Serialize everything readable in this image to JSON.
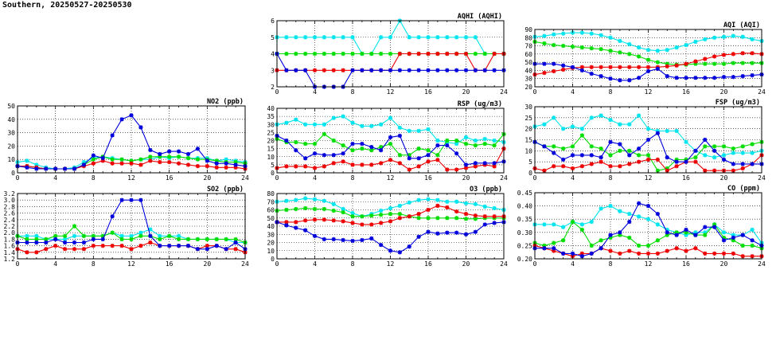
{
  "page": {
    "title": "Southern, 20250527-20250530"
  },
  "colors": {
    "cyan": "#00e5ee",
    "green": "#00dd00",
    "red": "#ee0000",
    "blue": "#0000dd",
    "grid": "#000000",
    "axis": "#000000"
  },
  "chart_data": [
    {
      "type": "line",
      "title": "AQHI (AQHI)",
      "xlim": [
        0,
        24
      ],
      "xticks": [
        "0",
        "4",
        "8",
        "12",
        "16",
        "20",
        "24"
      ],
      "ylim": [
        2,
        6
      ],
      "yticks": [
        "2",
        "3",
        "4",
        "5",
        "6"
      ],
      "grid": true,
      "series": [
        {
          "color": "cyan",
          "values": [
            5,
            5,
            5,
            5,
            5,
            5,
            5,
            5,
            5,
            4,
            4,
            5,
            5,
            6,
            5,
            5,
            5,
            5,
            5,
            5,
            5,
            5,
            4,
            4,
            4
          ]
        },
        {
          "color": "green",
          "values": [
            4,
            4,
            4,
            4,
            4,
            4,
            4,
            4,
            4,
            4,
            4,
            4,
            4,
            4,
            4,
            4,
            4,
            4,
            4,
            4,
            4,
            4,
            4,
            4,
            4
          ]
        },
        {
          "color": "red",
          "values": [
            3,
            3,
            3,
            3,
            3,
            3,
            3,
            3,
            3,
            3,
            3,
            3,
            3,
            4,
            4,
            4,
            4,
            4,
            4,
            4,
            4,
            3,
            3,
            4,
            4
          ]
        },
        {
          "color": "blue",
          "values": [
            4,
            3,
            3,
            3,
            2,
            2,
            2,
            2,
            3,
            3,
            3,
            3,
            3,
            3,
            3,
            3,
            3,
            3,
            3,
            3,
            3,
            3,
            3,
            3,
            3
          ]
        }
      ]
    },
    {
      "type": "line",
      "title": "AQI (AQI)",
      "xlim": [
        0,
        24
      ],
      "xticks": [
        "0",
        "4",
        "8",
        "12",
        "16",
        "20",
        "24"
      ],
      "ylim": [
        20,
        90
      ],
      "yticks": [
        "20",
        "30",
        "40",
        "50",
        "60",
        "70",
        "80",
        "90"
      ],
      "grid": true,
      "series": [
        {
          "color": "cyan",
          "values": [
            81,
            82,
            84,
            85,
            86,
            86,
            85,
            83,
            80,
            76,
            72,
            68,
            65,
            64,
            65,
            68,
            71,
            75,
            78,
            80,
            81,
            82,
            81,
            78,
            76
          ]
        },
        {
          "color": "green",
          "values": [
            75,
            73,
            71,
            70,
            69,
            68,
            67,
            66,
            64,
            62,
            60,
            57,
            53,
            50,
            48,
            47,
            47,
            48,
            48,
            48,
            48,
            49,
            49,
            49,
            49
          ]
        },
        {
          "color": "red",
          "values": [
            35,
            37,
            39,
            41,
            43,
            44,
            44,
            44,
            44,
            44,
            44,
            44,
            44,
            44,
            45,
            46,
            48,
            51,
            54,
            57,
            59,
            60,
            61,
            61,
            60
          ]
        },
        {
          "color": "blue",
          "values": [
            48,
            48,
            48,
            46,
            44,
            40,
            36,
            33,
            30,
            28,
            28,
            31,
            39,
            42,
            33,
            31,
            31,
            31,
            31,
            31,
            32,
            32,
            33,
            34,
            35
          ]
        }
      ]
    },
    {
      "type": "line",
      "title": "NO2 (ppb)",
      "xlim": [
        0,
        24
      ],
      "xticks": [
        "0",
        "4",
        "8",
        "12",
        "16",
        "20",
        "24"
      ],
      "ylim": [
        0,
        50
      ],
      "yticks": [
        "0",
        "10",
        "20",
        "30",
        "40",
        "50"
      ],
      "grid": true,
      "series": [
        {
          "color": "cyan",
          "values": [
            8,
            9,
            6,
            4,
            3,
            3,
            4,
            8,
            11,
            12,
            11,
            10,
            9,
            10,
            10,
            12,
            11,
            12,
            11,
            11,
            11,
            9,
            10,
            9,
            8
          ]
        },
        {
          "color": "green",
          "values": [
            5,
            5,
            4,
            3,
            3,
            3,
            3,
            6,
            10,
            12,
            10,
            10,
            9,
            10,
            12,
            12,
            12,
            12,
            11,
            10,
            10,
            9,
            8,
            8,
            7
          ]
        },
        {
          "color": "red",
          "values": [
            5,
            5,
            4,
            3,
            3,
            3,
            3,
            5,
            7,
            9,
            7,
            7,
            7,
            6,
            9,
            8,
            8,
            7,
            6,
            5,
            5,
            4,
            4,
            4,
            3
          ]
        },
        {
          "color": "blue",
          "values": [
            5,
            4,
            3,
            3,
            3,
            3,
            3,
            6,
            13,
            11,
            28,
            40,
            43,
            34,
            17,
            14,
            16,
            16,
            14,
            18,
            9,
            7,
            7,
            6,
            5
          ]
        }
      ]
    },
    {
      "type": "line",
      "title": "RSP (ug/m3)",
      "xlim": [
        0,
        24
      ],
      "xticks": [
        "0",
        "4",
        "8",
        "12",
        "16",
        "20",
        "24"
      ],
      "ylim": [
        0,
        40
      ],
      "yticks": [
        "0",
        "5",
        "10",
        "15",
        "20",
        "25",
        "30",
        "35",
        "40"
      ],
      "grid": true,
      "series": [
        {
          "color": "cyan",
          "values": [
            30,
            31,
            33,
            30,
            30,
            30,
            34,
            35,
            31,
            29,
            29,
            30,
            34,
            28,
            26,
            26,
            27,
            20,
            19,
            18,
            22,
            20,
            21,
            20,
            19
          ]
        },
        {
          "color": "green",
          "values": [
            21,
            19,
            19,
            18,
            18,
            24,
            20,
            17,
            14,
            15,
            14,
            16,
            18,
            11,
            11,
            15,
            14,
            11,
            20,
            20,
            18,
            17,
            18,
            17,
            24
          ]
        },
        {
          "color": "red",
          "values": [
            3,
            4,
            4,
            4,
            3,
            4,
            6,
            7,
            5,
            5,
            5,
            6,
            8,
            6,
            2,
            4,
            7,
            8,
            2,
            2,
            3,
            4,
            5,
            4,
            15
          ]
        },
        {
          "color": "blue",
          "values": [
            23,
            20,
            14,
            9,
            12,
            11,
            11,
            12,
            18,
            18,
            16,
            14,
            22,
            23,
            9,
            9,
            11,
            17,
            17,
            12,
            5,
            6,
            6,
            6,
            7
          ]
        }
      ]
    },
    {
      "type": "line",
      "title": "FSP (ug/m3)",
      "xlim": [
        0,
        24
      ],
      "xticks": [
        "0",
        "4",
        "8",
        "12",
        "16",
        "20",
        "24"
      ],
      "ylim": [
        0,
        30
      ],
      "yticks": [
        "0",
        "5",
        "10",
        "15",
        "20",
        "25",
        "30"
      ],
      "grid": true,
      "series": [
        {
          "color": "cyan",
          "values": [
            21,
            22,
            25,
            20,
            21,
            20,
            25,
            26,
            24,
            22,
            22,
            26,
            20,
            19,
            19,
            19,
            14,
            10,
            8,
            7,
            8,
            9,
            9,
            9,
            10
          ]
        },
        {
          "color": "green",
          "values": [
            14,
            12,
            12,
            11,
            12,
            17,
            12,
            11,
            8,
            10,
            10,
            8,
            8,
            1,
            2,
            6,
            6,
            7,
            12,
            12,
            12,
            11,
            12,
            13,
            14
          ]
        },
        {
          "color": "red",
          "values": [
            2,
            1,
            3,
            3,
            2,
            3,
            4,
            5,
            3,
            3,
            4,
            5,
            6,
            6,
            1,
            3,
            5,
            5,
            1,
            1,
            1,
            1,
            2,
            4,
            8
          ]
        },
        {
          "color": "blue",
          "values": [
            14,
            12,
            9,
            6,
            8,
            8,
            8,
            7,
            14,
            13,
            8,
            11,
            15,
            18,
            7,
            5,
            5,
            10,
            15,
            10,
            6,
            4,
            4,
            4,
            4
          ]
        }
      ]
    },
    {
      "type": "line",
      "title": "SO2 (ppb)",
      "xlim": [
        0,
        24
      ],
      "xticks": [
        "0",
        "4",
        "8",
        "12",
        "16",
        "20",
        "24"
      ],
      "ylim": [
        1.2,
        3.2
      ],
      "yticks": [
        "1.2",
        "1.4",
        "1.6",
        "1.8",
        "2.0",
        "2.2",
        "2.4",
        "2.6",
        "2.8",
        "3.0",
        "3.2"
      ],
      "grid": true,
      "series": [
        {
          "color": "cyan",
          "values": [
            1.9,
            1.9,
            1.9,
            1.8,
            1.8,
            1.8,
            1.9,
            1.9,
            1.9,
            1.9,
            2.0,
            1.9,
            1.9,
            2.0,
            2.1,
            1.9,
            1.9,
            1.9,
            1.8,
            1.8,
            1.8,
            1.8,
            1.8,
            1.7,
            1.7
          ]
        },
        {
          "color": "green",
          "values": [
            1.9,
            1.8,
            1.8,
            1.8,
            1.9,
            1.9,
            2.2,
            1.9,
            1.9,
            1.9,
            2.0,
            1.8,
            1.8,
            1.9,
            1.9,
            1.8,
            1.9,
            1.8,
            1.8,
            1.8,
            1.8,
            1.8,
            1.8,
            1.8,
            1.7
          ]
        },
        {
          "color": "red",
          "values": [
            1.5,
            1.4,
            1.4,
            1.5,
            1.6,
            1.5,
            1.5,
            1.5,
            1.6,
            1.6,
            1.6,
            1.6,
            1.5,
            1.6,
            1.7,
            1.6,
            1.6,
            1.6,
            1.6,
            1.5,
            1.6,
            1.6,
            1.5,
            1.5,
            1.4
          ]
        },
        {
          "color": "blue",
          "values": [
            1.7,
            1.7,
            1.7,
            1.7,
            1.8,
            1.7,
            1.7,
            1.7,
            1.8,
            1.8,
            2.5,
            3.0,
            3.0,
            3.0,
            1.9,
            1.6,
            1.6,
            1.6,
            1.6,
            1.5,
            1.5,
            1.6,
            1.5,
            1.7,
            1.5
          ]
        }
      ]
    },
    {
      "type": "line",
      "title": "O3 (ppb)",
      "xlim": [
        0,
        24
      ],
      "xticks": [
        "0",
        "4",
        "8",
        "12",
        "16",
        "20",
        "24"
      ],
      "ylim": [
        0,
        80
      ],
      "yticks": [
        "0",
        "10",
        "20",
        "30",
        "40",
        "50",
        "60",
        "70",
        "80"
      ],
      "grid": true,
      "series": [
        {
          "color": "cyan",
          "values": [
            70,
            71,
            72,
            74,
            73,
            71,
            67,
            61,
            56,
            52,
            55,
            59,
            62,
            65,
            69,
            72,
            73,
            72,
            70,
            70,
            68,
            67,
            64,
            62,
            60
          ]
        },
        {
          "color": "green",
          "values": [
            59,
            60,
            61,
            62,
            61,
            61,
            59,
            57,
            52,
            52,
            53,
            54,
            55,
            55,
            52,
            50,
            50,
            50,
            50,
            50,
            49,
            49,
            50,
            50,
            50
          ]
        },
        {
          "color": "red",
          "values": [
            45,
            45,
            45,
            47,
            48,
            48,
            47,
            46,
            44,
            42,
            42,
            44,
            46,
            50,
            52,
            55,
            60,
            65,
            63,
            58,
            55,
            53,
            52,
            52,
            52
          ]
        },
        {
          "color": "blue",
          "values": [
            45,
            41,
            38,
            35,
            28,
            24,
            24,
            23,
            22,
            23,
            25,
            17,
            10,
            8,
            15,
            27,
            33,
            31,
            32,
            32,
            30,
            33,
            42,
            44,
            45
          ]
        }
      ]
    },
    {
      "type": "line",
      "title": "CO (ppm)",
      "xlim": [
        0,
        24
      ],
      "xticks": [
        "0",
        "4",
        "8",
        "12",
        "16",
        "20",
        "24"
      ],
      "ylim": [
        0.2,
        0.45
      ],
      "yticks": [
        "0.20",
        "0.25",
        "0.30",
        "0.35",
        "0.40",
        "0.45"
      ],
      "grid": true,
      "series": [
        {
          "color": "cyan",
          "values": [
            0.33,
            0.33,
            0.33,
            0.32,
            0.34,
            0.33,
            0.34,
            0.39,
            0.4,
            0.38,
            0.37,
            0.36,
            0.35,
            0.33,
            0.31,
            0.3,
            0.29,
            0.3,
            0.3,
            0.33,
            0.3,
            0.29,
            0.29,
            0.31,
            0.26
          ]
        },
        {
          "color": "green",
          "values": [
            0.26,
            0.25,
            0.26,
            0.27,
            0.34,
            0.31,
            0.25,
            0.27,
            0.28,
            0.29,
            0.28,
            0.25,
            0.25,
            0.27,
            0.29,
            0.3,
            0.3,
            0.29,
            0.29,
            0.33,
            0.28,
            0.27,
            0.25,
            0.25,
            0.24
          ]
        },
        {
          "color": "red",
          "values": [
            0.25,
            0.24,
            0.23,
            0.22,
            0.21,
            0.22,
            0.22,
            0.24,
            0.23,
            0.22,
            0.23,
            0.22,
            0.22,
            0.22,
            0.23,
            0.24,
            0.23,
            0.24,
            0.22,
            0.22,
            0.22,
            0.22,
            0.21,
            0.21,
            0.21
          ]
        },
        {
          "color": "blue",
          "values": [
            0.24,
            0.24,
            0.24,
            0.22,
            0.22,
            0.21,
            0.22,
            0.24,
            0.29,
            0.3,
            0.34,
            0.41,
            0.4,
            0.37,
            0.3,
            0.29,
            0.31,
            0.29,
            0.32,
            0.32,
            0.27,
            0.28,
            0.29,
            0.27,
            0.25
          ]
        }
      ]
    }
  ]
}
